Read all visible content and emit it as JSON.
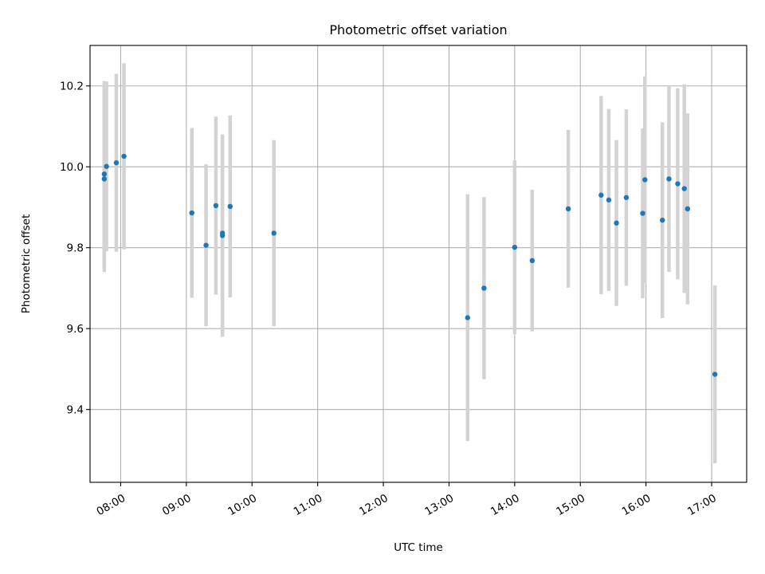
{
  "chart_data": {
    "type": "scatter",
    "title": "Photometric offset variation",
    "xlabel": "UTC time",
    "ylabel": "Photometric offset",
    "xlim": [
      "07:32",
      "17:32"
    ],
    "ylim": [
      9.22,
      10.3
    ],
    "x_ticks": [
      "08:00",
      "09:00",
      "10:00",
      "11:00",
      "12:00",
      "13:00",
      "14:00",
      "15:00",
      "16:00",
      "17:00"
    ],
    "y_ticks": [
      9.4,
      9.6,
      9.8,
      10.0,
      10.2
    ],
    "grid": true,
    "colors": {
      "points": "#1f77b4",
      "error_bars": "#d3d3d3"
    },
    "points": [
      {
        "time": "07:45",
        "y": 9.97,
        "err": 0.23
      },
      {
        "time": "07:45",
        "y": 9.982,
        "err": 0.23
      },
      {
        "time": "07:47",
        "y": 10.001,
        "err": 0.21
      },
      {
        "time": "07:56",
        "y": 10.01,
        "err": 0.22
      },
      {
        "time": "08:03",
        "y": 10.026,
        "err": 0.23
      },
      {
        "time": "09:05",
        "y": 9.886,
        "err": 0.21
      },
      {
        "time": "09:18",
        "y": 9.806,
        "err": 0.2
      },
      {
        "time": "09:27",
        "y": 9.904,
        "err": 0.22
      },
      {
        "time": "09:33",
        "y": 9.836,
        "err": 0.24
      },
      {
        "time": "09:33",
        "y": 9.83,
        "err": 0.25
      },
      {
        "time": "09:40",
        "y": 9.902,
        "err": 0.225
      },
      {
        "time": "10:20",
        "y": 9.836,
        "err": 0.23
      },
      {
        "time": "13:17",
        "y": 9.627,
        "err": 0.305
      },
      {
        "time": "13:32",
        "y": 9.7,
        "err": 0.225
      },
      {
        "time": "14:00",
        "y": 9.801,
        "err": 0.215
      },
      {
        "time": "14:16",
        "y": 9.768,
        "err": 0.175
      },
      {
        "time": "14:49",
        "y": 9.896,
        "err": 0.195
      },
      {
        "time": "15:19",
        "y": 9.93,
        "err": 0.245
      },
      {
        "time": "15:26",
        "y": 9.918,
        "err": 0.225
      },
      {
        "time": "15:33",
        "y": 9.861,
        "err": 0.205
      },
      {
        "time": "15:42",
        "y": 9.924,
        "err": 0.218
      },
      {
        "time": "15:57",
        "y": 9.885,
        "err": 0.21
      },
      {
        "time": "15:59",
        "y": 9.968,
        "err": 0.256
      },
      {
        "time": "16:15",
        "y": 9.868,
        "err": 0.242
      },
      {
        "time": "16:21",
        "y": 9.97,
        "err": 0.23
      },
      {
        "time": "16:29",
        "y": 9.958,
        "err": 0.236
      },
      {
        "time": "16:35",
        "y": 9.946,
        "err": 0.258
      },
      {
        "time": "16:38",
        "y": 9.896,
        "err": 0.236
      },
      {
        "time": "17:03",
        "y": 9.487,
        "err": 0.22
      }
    ]
  }
}
